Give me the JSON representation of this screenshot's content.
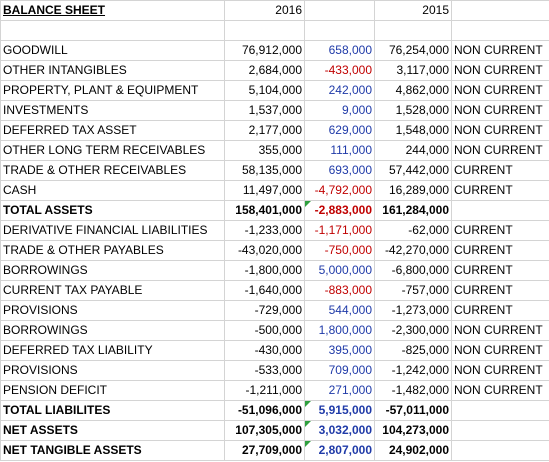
{
  "header": {
    "title": "BALANCE SHEET",
    "year_a": "2016",
    "year_b": "2015"
  },
  "rows": [
    {
      "label": "GOODWILL",
      "v2016": "76,912,000",
      "change": "658,000",
      "v2015": "76,254,000",
      "class": "NON CURRENT"
    },
    {
      "label": "OTHER INTANGIBLES",
      "v2016": "2,684,000",
      "change": "-433,000",
      "v2015": "3,117,000",
      "class": "NON CURRENT"
    },
    {
      "label": "PROPERTY, PLANT & EQUIPMENT",
      "v2016": "5,104,000",
      "change": "242,000",
      "v2015": "4,862,000",
      "class": "NON CURRENT"
    },
    {
      "label": "INVESTMENTS",
      "v2016": "1,537,000",
      "change": "9,000",
      "v2015": "1,528,000",
      "class": "NON CURRENT"
    },
    {
      "label": "DEFERRED TAX ASSET",
      "v2016": "2,177,000",
      "change": "629,000",
      "v2015": "1,548,000",
      "class": "NON CURRENT"
    },
    {
      "label": "OTHER LONG TERM RECEIVABLES",
      "v2016": "355,000",
      "change": "111,000",
      "v2015": "244,000",
      "class": "NON CURRENT"
    },
    {
      "label": "TRADE & OTHER RECEIVABLES",
      "v2016": "58,135,000",
      "change": "693,000",
      "v2015": "57,442,000",
      "class": "CURRENT"
    },
    {
      "label": "CASH",
      "v2016": "11,497,000",
      "change": "-4,792,000",
      "v2015": "16,289,000",
      "class": "CURRENT"
    },
    {
      "label": "TOTAL ASSETS",
      "v2016": "158,401,000",
      "change": "-2,883,000",
      "v2015": "161,284,000",
      "class": ""
    },
    {
      "label": "DERIVATIVE FINANCIAL LIABILITIES",
      "v2016": "-1,233,000",
      "change": "-1,171,000",
      "v2015": "-62,000",
      "class": "CURRENT"
    },
    {
      "label": "TRADE & OTHER PAYABLES",
      "v2016": "-43,020,000",
      "change": "-750,000",
      "v2015": "-42,270,000",
      "class": "CURRENT"
    },
    {
      "label": "BORROWINGS",
      "v2016": "-1,800,000",
      "change": "5,000,000",
      "v2015": "-6,800,000",
      "class": "CURRENT"
    },
    {
      "label": "CURRENT TAX PAYABLE",
      "v2016": "-1,640,000",
      "change": "-883,000",
      "v2015": "-757,000",
      "class": "CURRENT"
    },
    {
      "label": "PROVISIONS",
      "v2016": "-729,000",
      "change": "544,000",
      "v2015": "-1,273,000",
      "class": "CURRENT"
    },
    {
      "label": "BORROWINGS",
      "v2016": "-500,000",
      "change": "1,800,000",
      "v2015": "-2,300,000",
      "class": "NON CURRENT"
    },
    {
      "label": "DEFERRED TAX LIABILITY",
      "v2016": "-430,000",
      "change": "395,000",
      "v2015": "-825,000",
      "class": "NON CURRENT"
    },
    {
      "label": "PROVISIONS",
      "v2016": "-533,000",
      "change": "709,000",
      "v2015": "-1,242,000",
      "class": "NON CURRENT"
    },
    {
      "label": "PENSION DEFICIT",
      "v2016": "-1,211,000",
      "change": "271,000",
      "v2015": "-1,482,000",
      "class": "NON CURRENT"
    },
    {
      "label": "TOTAL LIABILITES",
      "v2016": "-51,096,000",
      "change": "5,915,000",
      "v2015": "-57,011,000",
      "class": ""
    },
    {
      "label": "NET ASSETS",
      "v2016": "107,305,000",
      "change": "3,032,000",
      "v2015": "104,273,000",
      "class": ""
    },
    {
      "label": "NET TANGIBLE ASSETS",
      "v2016": "27,709,000",
      "change": "2,807,000",
      "v2015": "24,902,000",
      "class": ""
    }
  ],
  "styles": {
    "positive_color": "#1f3aa8",
    "negative_color": "#c00000",
    "error_marker_color": "#2e9f3e",
    "bold_rows": [
      8,
      18,
      19,
      20
    ],
    "marker_rows": [
      8,
      18,
      19,
      20
    ]
  }
}
